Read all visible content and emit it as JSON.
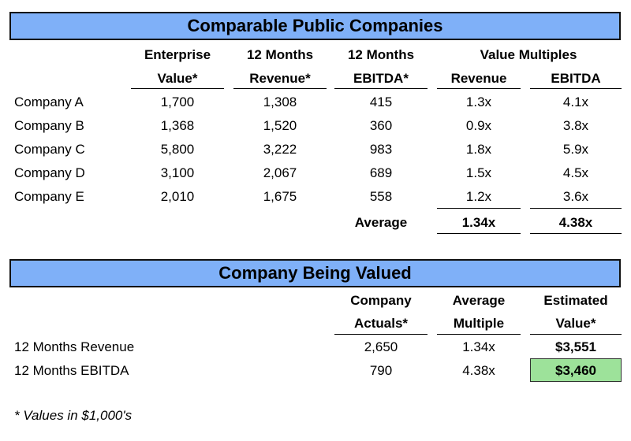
{
  "comparables": {
    "title": "Comparable Public Companies",
    "headers": {
      "ev_line1": "Enterprise",
      "ev_line2": "Value*",
      "rev_line1": "12 Months",
      "rev_line2": "Revenue*",
      "ebitda_line1": "12 Months",
      "ebitda_line2": "EBITDA*",
      "multiples_group": "Value Multiples",
      "mult_rev": "Revenue",
      "mult_ebitda": "EBITDA"
    },
    "rows": [
      {
        "name": "Company A",
        "ev": "1,700",
        "revenue": "1,308",
        "ebitda": "415",
        "rev_mult": "1.3x",
        "ebitda_mult": "4.1x"
      },
      {
        "name": "Company B",
        "ev": "1,368",
        "revenue": "1,520",
        "ebitda": "360",
        "rev_mult": "0.9x",
        "ebitda_mult": "3.8x"
      },
      {
        "name": "Company C",
        "ev": "5,800",
        "revenue": "3,222",
        "ebitda": "983",
        "rev_mult": "1.8x",
        "ebitda_mult": "5.9x"
      },
      {
        "name": "Company D",
        "ev": "3,100",
        "revenue": "2,067",
        "ebitda": "689",
        "rev_mult": "1.5x",
        "ebitda_mult": "4.5x"
      },
      {
        "name": "Company E",
        "ev": "2,010",
        "revenue": "1,675",
        "ebitda": "558",
        "rev_mult": "1.2x",
        "ebitda_mult": "3.6x"
      }
    ],
    "average": {
      "label": "Average",
      "rev_mult": "1.34x",
      "ebitda_mult": "4.38x"
    }
  },
  "valued": {
    "title": "Company Being Valued",
    "headers": {
      "actuals_line1": "Company",
      "actuals_line2": "Actuals*",
      "avg_line1": "Average",
      "avg_line2": "Multiple",
      "est_line1": "Estimated",
      "est_line2": "Value*"
    },
    "rows": [
      {
        "name": "12 Months Revenue",
        "actual": "2,650",
        "multiple": "1.34x",
        "value": "$3,551"
      },
      {
        "name": "12 Months EBITDA",
        "actual": "790",
        "multiple": "4.38x",
        "value": "$3,460"
      }
    ],
    "highlight_color": "#9de29a"
  },
  "footnote": "* Values in $1,000's"
}
